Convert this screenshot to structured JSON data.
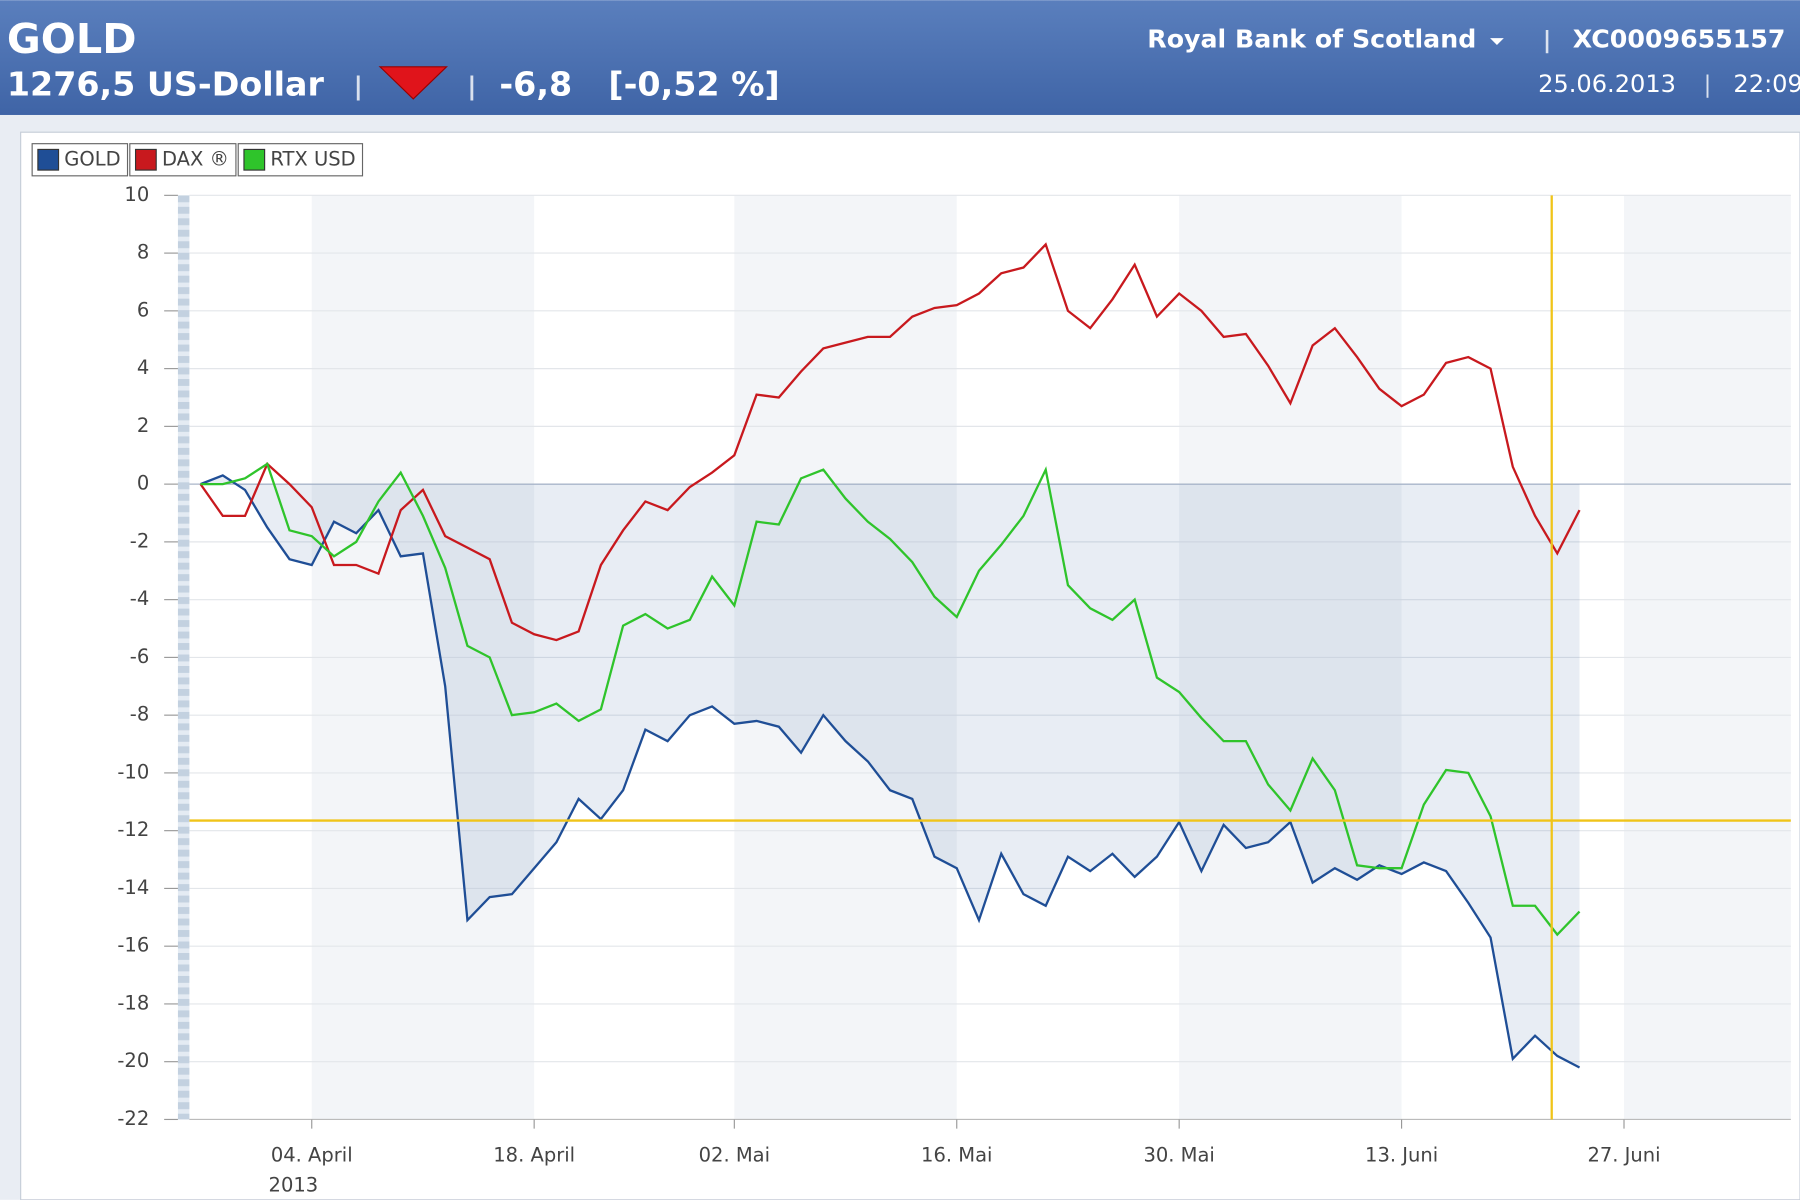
{
  "header": {
    "title": "GOLD",
    "price": "1276,5 US-Dollar",
    "change": "-6,8",
    "change_pct": "[-0,52 %]",
    "issuer": "Royal Bank of Scotland",
    "isin": "XC0009655157",
    "date": "25.06.2013",
    "time": "22:09"
  },
  "chart_data": {
    "type": "line",
    "x": [
      0,
      1,
      2,
      3,
      4,
      5,
      6,
      7,
      8,
      9,
      10,
      11,
      12,
      13,
      14,
      15,
      16,
      17,
      18,
      19,
      20,
      21,
      22,
      23,
      24,
      25,
      26,
      27,
      28,
      29,
      30,
      31,
      32,
      33,
      34,
      35,
      36,
      37,
      38,
      39,
      40,
      41,
      42,
      43,
      44,
      45,
      46,
      47,
      48,
      49,
      50,
      51,
      52,
      53,
      54,
      55,
      56,
      57,
      58,
      59,
      60,
      61,
      62
    ],
    "series": [
      {
        "name": "GOLD",
        "color": "#1f4e96",
        "values": [
          0,
          0.3,
          -0.2,
          -1.5,
          -2.6,
          -2.8,
          -1.3,
          -1.7,
          -0.9,
          -2.5,
          -2.4,
          -7.0,
          -15.1,
          -14.3,
          -14.2,
          -13.3,
          -12.4,
          -10.9,
          -11.6,
          -10.6,
          -8.5,
          -8.9,
          -8.0,
          -7.7,
          -8.3,
          -8.2,
          -8.4,
          -9.3,
          -8.0,
          -8.9,
          -9.6,
          -10.6,
          -10.9,
          -12.9,
          -13.3,
          -15.1,
          -12.8,
          -14.2,
          -14.6,
          -12.9,
          -13.4,
          -12.8,
          -13.6,
          -12.9,
          -11.7,
          -13.4,
          -11.8,
          -12.6,
          -12.4,
          -11.7,
          -13.8,
          -13.3,
          -13.7,
          -13.2,
          -13.5,
          -13.1,
          -13.4,
          -14.5,
          -15.7,
          -19.9,
          -19.1,
          -19.8,
          -20.2
        ]
      },
      {
        "name": "DAX ®",
        "color": "#c8191e",
        "values": [
          0,
          -1.1,
          -1.1,
          0.7,
          0,
          -0.8,
          -2.8,
          -2.8,
          -3.1,
          -0.9,
          -0.2,
          -1.8,
          -2.2,
          -2.6,
          -4.8,
          -5.2,
          -5.4,
          -5.1,
          -2.8,
          -1.6,
          -0.6,
          -0.9,
          -0.1,
          0.4,
          1.0,
          3.1,
          3.0,
          3.9,
          4.7,
          4.9,
          5.1,
          5.1,
          5.8,
          6.1,
          6.2,
          6.6,
          7.3,
          7.5,
          8.3,
          6.0,
          5.4,
          6.4,
          7.6,
          5.8,
          6.6,
          6.0,
          5.1,
          5.2,
          4.1,
          2.8,
          4.8,
          5.4,
          4.4,
          3.3,
          2.7,
          3.1,
          4.2,
          4.4,
          4.0,
          0.6,
          -1.1,
          -2.4,
          -0.9
        ]
      },
      {
        "name": "RTX USD",
        "color": "#2fc42b",
        "values": [
          0,
          0,
          0.2,
          0.7,
          -1.6,
          -1.8,
          -2.5,
          -2.0,
          -0.6,
          0.4,
          -1.1,
          -2.9,
          -5.6,
          -6.0,
          -8.0,
          -7.9,
          -7.6,
          -8.2,
          -7.8,
          -4.9,
          -4.5,
          -5.0,
          -4.7,
          -3.2,
          -4.2,
          -1.3,
          -1.4,
          0.2,
          0.5,
          -0.5,
          -1.3,
          -1.9,
          -2.7,
          -3.9,
          -4.6,
          -3.0,
          -2.1,
          -1.1,
          0.5,
          -3.5,
          -4.3,
          -4.7,
          -4.0,
          -6.7,
          -7.2,
          -8.1,
          -8.9,
          -8.9,
          -10.4,
          -11.3,
          -9.5,
          -10.6,
          -13.2,
          -13.3,
          -13.3,
          -11.1,
          -9.9,
          -10.0,
          -11.5,
          -14.6,
          -14.6,
          -15.6,
          -14.8
        ]
      }
    ],
    "xlim": [
      -0.5,
      71.5
    ],
    "xticks": [
      {
        "value": 5,
        "label": "04. April"
      },
      {
        "value": 15,
        "label": "18. April"
      },
      {
        "value": 24,
        "label": "02. Mai"
      },
      {
        "value": 34,
        "label": "16. Mai"
      },
      {
        "value": 44,
        "label": "30. Mai"
      },
      {
        "value": 54,
        "label": "13. Juni"
      },
      {
        "value": 64,
        "label": "27. Juni"
      }
    ],
    "x_year_label": "2013",
    "ylim": [
      -22,
      10
    ],
    "yticks": [
      -22,
      -20,
      -18,
      -16,
      -14,
      -12,
      -10,
      -8,
      -6,
      -4,
      -2,
      0,
      2,
      4,
      6,
      8,
      10
    ],
    "grid": true,
    "crosshair": {
      "x": 60.75,
      "y": -11.65
    }
  }
}
